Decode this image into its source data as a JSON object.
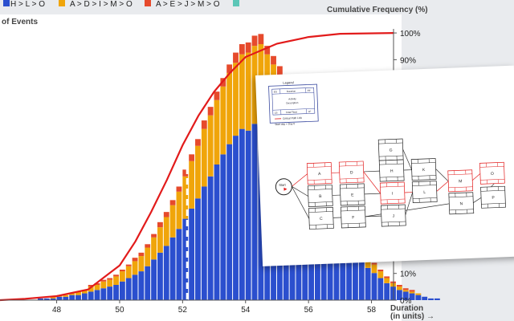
{
  "legend": [
    {
      "label": "H > L > O",
      "color": "#2b4fce"
    },
    {
      "label": "A > D > I > M > O",
      "color": "#f0a50a"
    },
    {
      "label": "A > E > J > M > O",
      "color": "#e64a2c"
    },
    {
      "label": "",
      "color": "#5cc6b7"
    }
  ],
  "left_axis_title": "of Events",
  "right_axis_title": "Cumulative Frequency (%)",
  "x_axis_title": [
    "Duration",
    "(in units) →"
  ],
  "mean_label": "",
  "chart_data": {
    "type": "bar",
    "x_ticks": [
      48,
      50,
      52,
      54,
      56,
      58
    ],
    "xlim": [
      46.2,
      58.7
    ],
    "bin_width": 0.2,
    "y2_ticks": [
      "0%",
      "10%",
      "90%",
      "100%"
    ],
    "y2_tick_values": [
      0,
      10,
      90,
      100
    ],
    "mean_line_x": 52.15,
    "series": [
      {
        "name": "H > L > O",
        "color": "#2b4fce",
        "values": [
          0,
          0,
          0,
          0,
          0,
          0,
          1,
          1,
          1,
          2,
          2,
          3,
          3,
          4,
          5,
          6,
          7,
          8,
          9,
          11,
          13,
          15,
          17,
          20,
          24,
          28,
          32,
          37,
          42,
          48,
          54,
          60,
          67,
          73,
          80,
          86,
          92,
          97,
          101,
          100,
          104,
          107,
          103,
          99,
          95,
          90,
          84,
          78,
          72,
          66,
          60,
          54,
          48,
          42,
          37,
          32,
          27,
          23,
          19,
          16,
          13,
          10,
          8,
          6,
          5,
          4,
          3,
          2,
          1,
          1
        ]
      },
      {
        "name": "A > D > I > M > O",
        "color": "#f0a50a",
        "values": [
          0,
          0,
          0,
          0,
          0,
          0,
          0,
          0,
          1,
          1,
          1,
          1,
          2,
          2,
          3,
          3,
          4,
          4,
          5,
          6,
          7,
          8,
          9,
          11,
          13,
          15,
          17,
          19,
          22,
          25,
          28,
          31,
          34,
          36,
          38,
          40,
          42,
          43,
          44,
          46,
          46,
          44,
          42,
          40,
          38,
          36,
          33,
          30,
          27,
          25,
          22,
          19,
          17,
          15,
          13,
          11,
          9,
          8,
          6,
          5,
          4,
          3,
          2,
          2,
          1,
          1,
          1,
          0,
          0,
          0
        ]
      },
      {
        "name": "A > E > J > M > O",
        "color": "#e64a2c",
        "values": [
          0,
          0,
          0,
          0,
          0,
          0,
          0,
          0,
          0,
          0,
          0,
          0,
          0,
          0,
          1,
          1,
          1,
          1,
          1,
          1,
          1,
          2,
          2,
          2,
          2,
          3,
          3,
          3,
          3,
          4,
          4,
          4,
          5,
          5,
          5,
          5,
          5,
          6,
          6,
          6,
          6,
          6,
          5,
          5,
          5,
          5,
          5,
          4,
          4,
          4,
          4,
          3,
          3,
          3,
          3,
          2,
          2,
          2,
          2,
          1,
          1,
          1,
          1,
          1,
          1,
          1,
          0,
          0,
          0,
          0
        ]
      },
      {
        "name": "",
        "color": "#5cc6b7",
        "values": [
          0,
          0,
          0,
          0,
          0,
          0,
          0,
          0,
          0,
          0,
          0,
          0,
          0,
          0,
          0,
          0,
          0,
          0,
          0,
          0,
          0,
          0,
          0,
          0,
          0,
          0,
          0,
          0,
          0,
          0,
          0,
          0,
          0,
          0,
          0,
          0,
          0,
          0,
          0,
          0,
          0,
          0,
          0,
          0,
          0,
          0,
          0,
          0,
          0,
          0,
          0,
          0,
          0,
          0,
          0,
          0,
          0,
          0,
          0,
          0,
          0,
          0,
          0,
          0,
          0,
          0,
          0,
          0,
          0,
          0
        ]
      }
    ],
    "cumulative": {
      "type": "line",
      "color": "#e21b1b",
      "description_units": "percent",
      "x": [
        46.2,
        47,
        48,
        49,
        50,
        50.5,
        51,
        51.5,
        52,
        52.5,
        53,
        53.5,
        54,
        55,
        56,
        57,
        58.7
      ],
      "y": [
        0,
        0.5,
        1.5,
        4,
        13,
        22,
        33,
        45,
        58,
        69,
        78,
        85,
        91,
        96,
        98.5,
        99.7,
        100
      ]
    }
  },
  "network": {
    "legend_title": "Legend",
    "legend_fields": [
      "ES",
      "Duration",
      "EF",
      "Activity",
      "Description",
      "LS",
      "Total Float",
      "LF"
    ],
    "legend_lines": [
      "Critical Path Link",
      "Start day = Day 0"
    ],
    "start_label": "Start",
    "nodes": [
      {
        "id": "n1",
        "label": "A",
        "critical": true
      },
      {
        "id": "n2",
        "label": "B",
        "critical": false
      },
      {
        "id": "n3",
        "label": "C",
        "critical": false
      },
      {
        "id": "n4",
        "label": "D",
        "critical": true
      },
      {
        "id": "n5",
        "label": "E",
        "critical": false
      },
      {
        "id": "n6",
        "label": "F",
        "critical": false
      },
      {
        "id": "n7",
        "label": "G",
        "critical": false
      },
      {
        "id": "n8",
        "label": "H",
        "critical": false
      },
      {
        "id": "n9",
        "label": "I",
        "critical": true
      },
      {
        "id": "n10",
        "label": "J",
        "critical": false
      },
      {
        "id": "n11",
        "label": "K",
        "critical": false
      },
      {
        "id": "n12",
        "label": "L",
        "critical": false
      },
      {
        "id": "n13",
        "label": "M",
        "critical": true
      },
      {
        "id": "n14",
        "label": "N",
        "critical": false
      },
      {
        "id": "n15",
        "label": "O",
        "critical": true
      },
      {
        "id": "n16",
        "label": "P",
        "critical": false
      }
    ]
  }
}
